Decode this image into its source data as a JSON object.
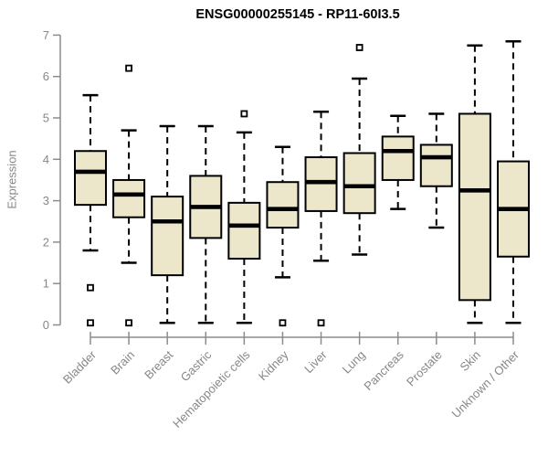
{
  "chart_data": {
    "type": "boxplot",
    "title": "ENSG00000255145 - RP11-60I3.5",
    "ylabel": "Expression",
    "ylim": [
      0,
      7
    ],
    "yticks": [
      0,
      1,
      2,
      3,
      4,
      5,
      6,
      7
    ],
    "grid": false,
    "legend": "none",
    "categories": [
      "Bladder",
      "Brain",
      "Breast",
      "Gastric",
      "Hematopoietic cells",
      "Kidney",
      "Liver",
      "Lung",
      "Pancreas",
      "Prostate",
      "Skin",
      "Unknown / Other"
    ],
    "boxes": [
      {
        "label": "Bladder",
        "whisker_low": 1.8,
        "q1": 2.9,
        "median": 3.7,
        "q3": 4.2,
        "whisker_high": 5.55,
        "outliers": [
          0.9,
          0.05
        ]
      },
      {
        "label": "Brain",
        "whisker_low": 1.5,
        "q1": 2.6,
        "median": 3.15,
        "q3": 3.5,
        "whisker_high": 4.7,
        "outliers": [
          6.2,
          0.05
        ]
      },
      {
        "label": "Breast",
        "whisker_low": 0.05,
        "q1": 1.2,
        "median": 2.5,
        "q3": 3.1,
        "whisker_high": 4.8,
        "outliers": []
      },
      {
        "label": "Gastric",
        "whisker_low": 0.05,
        "q1": 2.1,
        "median": 2.85,
        "q3": 3.6,
        "whisker_high": 4.8,
        "outliers": []
      },
      {
        "label": "Hematopoietic cells",
        "whisker_low": 0.05,
        "q1": 1.6,
        "median": 2.4,
        "q3": 2.95,
        "whisker_high": 4.65,
        "outliers": [
          5.1
        ]
      },
      {
        "label": "Kidney",
        "whisker_low": 1.15,
        "q1": 2.35,
        "median": 2.8,
        "q3": 3.45,
        "whisker_high": 4.3,
        "outliers": [
          0.05
        ]
      },
      {
        "label": "Liver",
        "whisker_low": 1.55,
        "q1": 2.75,
        "median": 3.45,
        "q3": 4.05,
        "whisker_high": 5.15,
        "outliers": [
          0.05
        ]
      },
      {
        "label": "Lung",
        "whisker_low": 1.7,
        "q1": 2.7,
        "median": 3.35,
        "q3": 4.15,
        "whisker_high": 5.95,
        "outliers": [
          6.7
        ]
      },
      {
        "label": "Pancreas",
        "whisker_low": 2.8,
        "q1": 3.5,
        "median": 4.2,
        "q3": 4.55,
        "whisker_high": 5.05,
        "outliers": []
      },
      {
        "label": "Prostate",
        "whisker_low": 2.35,
        "q1": 3.35,
        "median": 4.05,
        "q3": 4.35,
        "whisker_high": 5.1,
        "outliers": []
      },
      {
        "label": "Skin",
        "whisker_low": 0.05,
        "q1": 0.6,
        "median": 3.25,
        "q3": 5.1,
        "whisker_high": 6.75,
        "outliers": []
      },
      {
        "label": "Unknown / Other",
        "whisker_low": 0.05,
        "q1": 1.65,
        "median": 2.8,
        "q3": 3.95,
        "whisker_high": 6.85,
        "outliers": []
      }
    ],
    "colors": {
      "box_fill": "#ece6cb",
      "box_stroke": "#000000",
      "median": "#000000",
      "whisker": "#000000",
      "axis": "#8c8c8c",
      "tick_text": "#878787",
      "title_text": "#000000",
      "background": "#ffffff"
    }
  }
}
